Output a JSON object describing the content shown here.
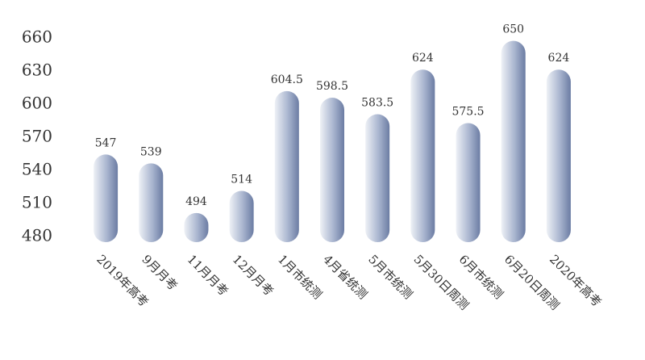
{
  "chart_data": {
    "type": "bar",
    "categories": [
      "2019年高考",
      "9月月考",
      "11月月考",
      "12月月考",
      "1月市统测",
      "4月省统测",
      "5月市统测",
      "5月30日周测",
      "6月市统测",
      "6月20日周测",
      "2020年高考"
    ],
    "values": [
      547,
      539,
      494,
      514,
      604.5,
      598.5,
      583.5,
      624,
      575.5,
      650,
      624
    ],
    "color": "#7282a8",
    "ylim": [
      480,
      660
    ],
    "yticks": [
      480,
      510,
      540,
      570,
      600,
      630,
      660
    ],
    "grid": false
  }
}
